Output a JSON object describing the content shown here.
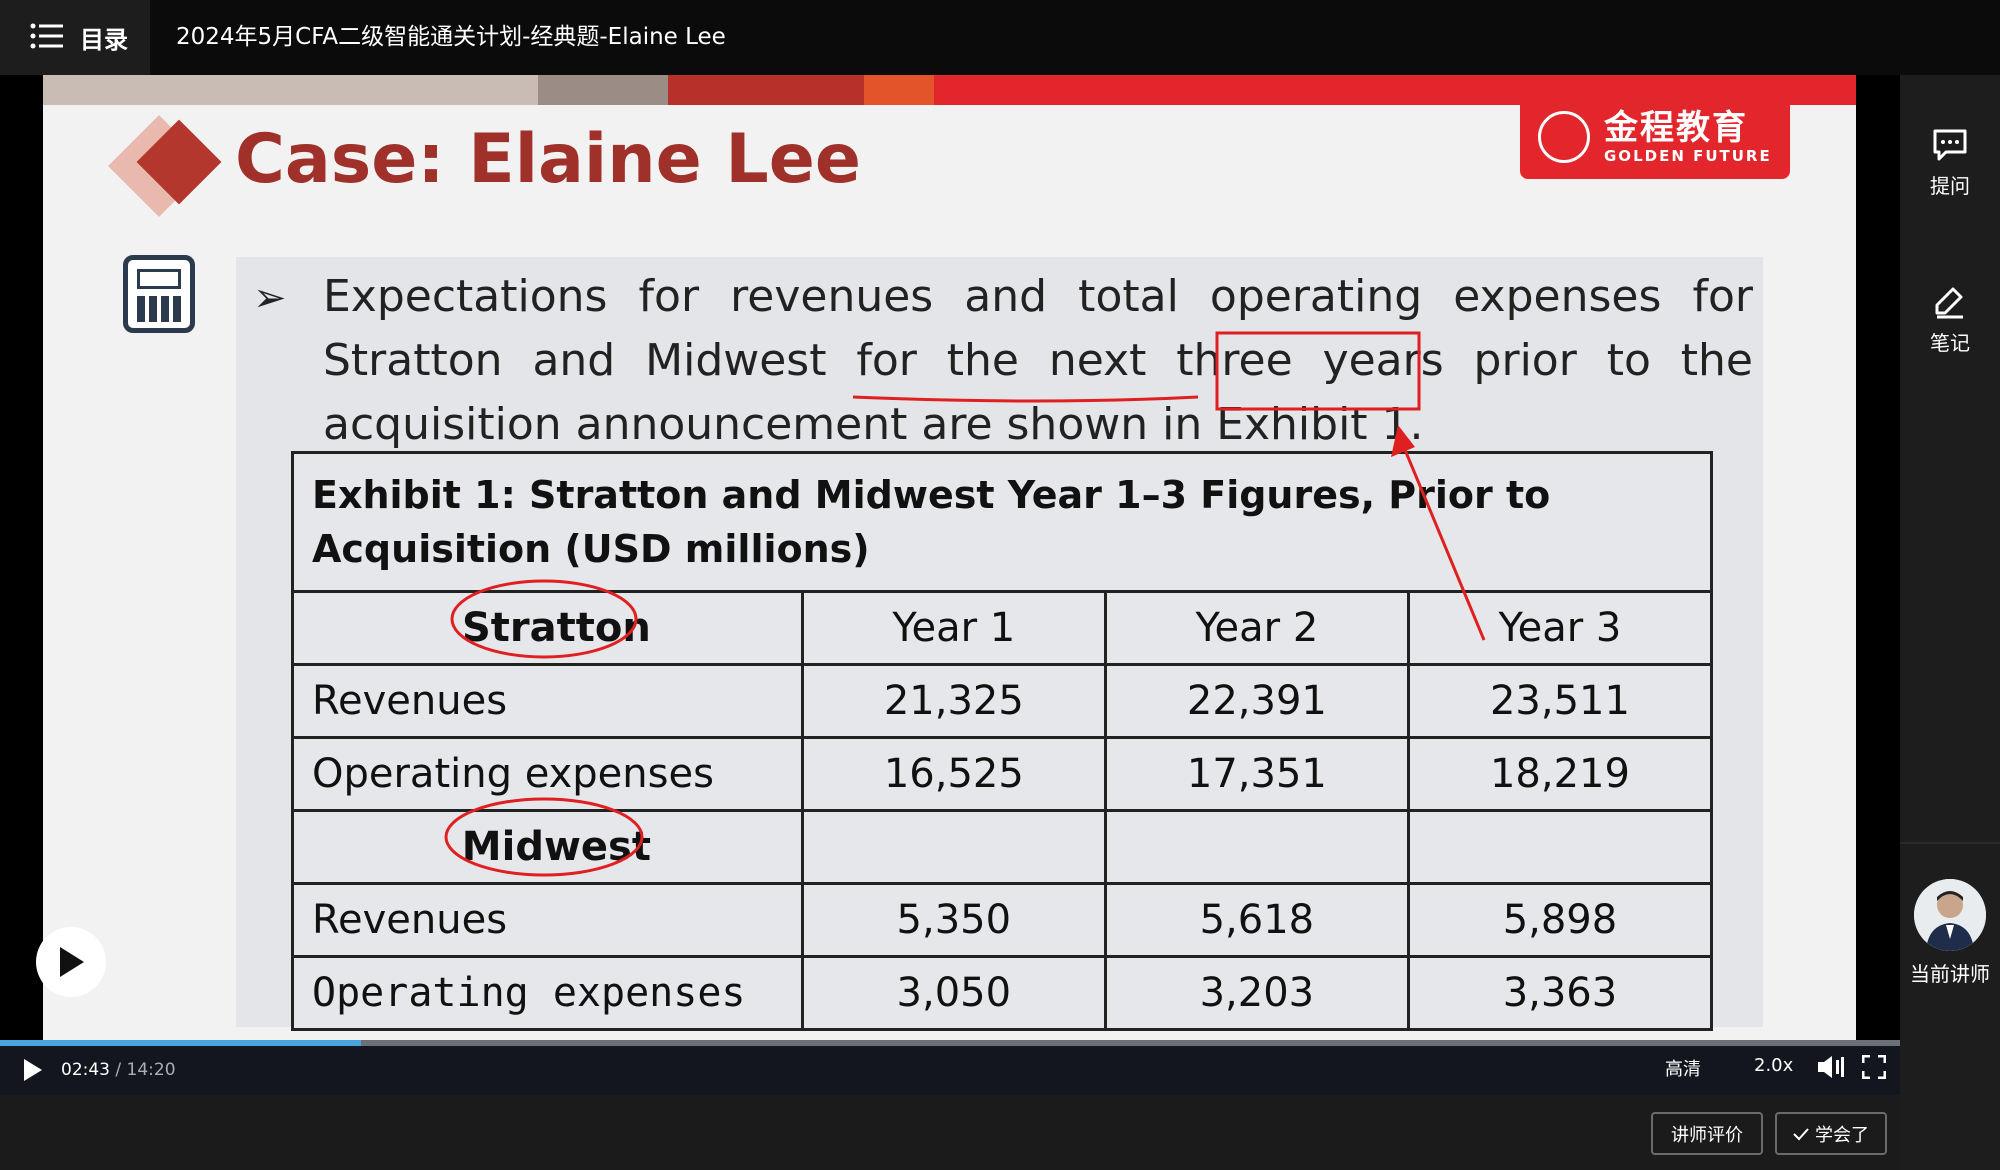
{
  "topbar": {
    "menu_label": "目录",
    "title": "2024年5月CFA二级智能通关计划-经典题-Elaine Lee"
  },
  "slide": {
    "title": "Case: Elaine Lee",
    "logo_cn": "金程教育",
    "logo_en": "GOLDEN FUTURE",
    "paragraph": "Expectations for revenues and total operating expenses for Stratton and Midwest for the next three years prior to the acquisition announcement are shown in Exhibit 1.",
    "exhibit": {
      "title": "Exhibit 1: Stratton and Midwest Year 1–3 Figures, Prior to Acquisition (USD millions)",
      "headers": [
        "Stratton",
        "Year 1",
        "Year 2",
        "Year 3"
      ],
      "stratton_rows": [
        {
          "label": "Revenues",
          "values": [
            "21,325",
            "22,391",
            "23,511"
          ]
        },
        {
          "label": "Operating expenses",
          "values": [
            "16,525",
            "17,351",
            "18,219"
          ]
        }
      ],
      "midwest_label": "Midwest",
      "midwest_rows": [
        {
          "label": "Revenues",
          "values": [
            "5,350",
            "5,618",
            "5,898"
          ]
        },
        {
          "label": "Operating expenses",
          "values": [
            "3,050",
            "3,203",
            "3,363"
          ]
        }
      ]
    }
  },
  "player": {
    "current_time": "02:43",
    "separator": " / ",
    "total_time": "14:20",
    "progress": 0.19,
    "quality": "高清",
    "speed": "2.0x"
  },
  "sidebar": {
    "ask_label": "提问",
    "notes_label": "笔记",
    "teacher_label": "当前讲师"
  },
  "bottom": {
    "rate_label": "讲师评价",
    "learned_label": "学会了"
  },
  "colors": {
    "brand_red": "#e3262c",
    "title_red": "#a0302a",
    "progress_blue": "#4aa3df"
  }
}
